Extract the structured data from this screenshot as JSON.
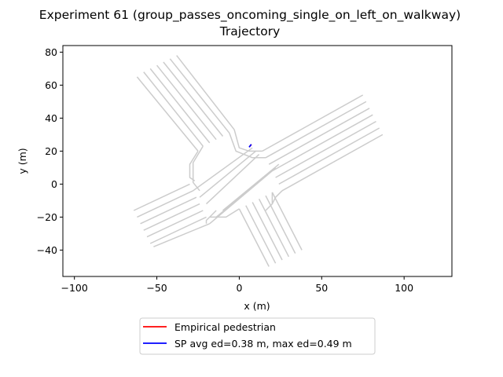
{
  "chart_data": {
    "type": "line",
    "title": "Experiment 61 (group_passes_oncoming_single_on_left_on_walkway)",
    "subtitle": "Trajectory",
    "xlabel": "x (m)",
    "ylabel": "y (m)",
    "xlim": [
      -107,
      129
    ],
    "ylim": [
      -56,
      84
    ],
    "xticks": [
      -100,
      -50,
      0,
      50,
      100
    ],
    "yticks": [
      -40,
      -20,
      0,
      20,
      40,
      60,
      80
    ],
    "grid": false,
    "legend_position": "bottom-center, below plot",
    "background_walkway": {
      "color": "#cccccc",
      "nw_arm": [
        {
          "x": [
            -62,
            -25
          ],
          "y": [
            65,
            20
          ]
        },
        {
          "x": [
            -58,
            -22
          ],
          "y": [
            68,
            23
          ]
        },
        {
          "x": [
            -54,
            -18
          ],
          "y": [
            70,
            25
          ]
        },
        {
          "x": [
            -50,
            -14
          ],
          "y": [
            72,
            27
          ]
        },
        {
          "x": [
            -46,
            -10
          ],
          "y": [
            74,
            29
          ]
        },
        {
          "x": [
            -42,
            -6
          ],
          "y": [
            76,
            31
          ]
        },
        {
          "x": [
            -38,
            -3
          ],
          "y": [
            78,
            33
          ]
        }
      ],
      "se_arm": [
        {
          "x": [
            0,
            18
          ],
          "y": [
            -15,
            -50
          ]
        },
        {
          "x": [
            4,
            22
          ],
          "y": [
            -13,
            -48
          ]
        },
        {
          "x": [
            8,
            26
          ],
          "y": [
            -11,
            -46
          ]
        },
        {
          "x": [
            12,
            30
          ],
          "y": [
            -9,
            -44
          ]
        },
        {
          "x": [
            16,
            34
          ],
          "y": [
            -7,
            -42
          ]
        },
        {
          "x": [
            20,
            38
          ],
          "y": [
            -5,
            -40
          ]
        }
      ],
      "ne_arm": [
        {
          "x": [
            14,
            75
          ],
          "y": [
            20,
            54
          ]
        },
        {
          "x": [
            16,
            77
          ],
          "y": [
            16,
            50
          ]
        },
        {
          "x": [
            18,
            79
          ],
          "y": [
            12,
            46
          ]
        },
        {
          "x": [
            20,
            81
          ],
          "y": [
            8,
            42
          ]
        },
        {
          "x": [
            22,
            83
          ],
          "y": [
            4,
            38
          ]
        },
        {
          "x": [
            24,
            85
          ],
          "y": [
            0,
            34
          ]
        },
        {
          "x": [
            26,
            87
          ],
          "y": [
            -4,
            30
          ]
        }
      ],
      "sw_arm": [
        {
          "x": [
            -64,
            -30
          ],
          "y": [
            -16,
            0
          ]
        },
        {
          "x": [
            -62,
            -28
          ],
          "y": [
            -20,
            -4
          ]
        },
        {
          "x": [
            -60,
            -26
          ],
          "y": [
            -24,
            -8
          ]
        },
        {
          "x": [
            -58,
            -24
          ],
          "y": [
            -28,
            -12
          ]
        },
        {
          "x": [
            -56,
            -22
          ],
          "y": [
            -32,
            -16
          ]
        },
        {
          "x": [
            -54,
            -20
          ],
          "y": [
            -36,
            -20
          ]
        },
        {
          "x": [
            -52,
            -18
          ],
          "y": [
            -38,
            -24
          ]
        }
      ],
      "center_curves": [
        {
          "x": [
            -25,
            -30,
            -30,
            -27
          ],
          "y": [
            20,
            12,
            4,
            2
          ]
        },
        {
          "x": [
            -22,
            -28,
            -28,
            -24
          ],
          "y": [
            23,
            13,
            1,
            -4
          ]
        },
        {
          "x": [
            -3,
            0,
            6,
            14
          ],
          "y": [
            33,
            22,
            20,
            20
          ]
        },
        {
          "x": [
            -6,
            -2,
            8,
            16
          ],
          "y": [
            31,
            20,
            16,
            16
          ]
        },
        {
          "x": [
            26,
            22,
            20
          ],
          "y": [
            -4,
            -8,
            -12
          ]
        },
        {
          "x": [
            20,
            20,
            16
          ],
          "y": [
            -5,
            -12,
            -16
          ]
        },
        {
          "x": [
            0,
            -8,
            -18
          ],
          "y": [
            -15,
            -20,
            -20
          ]
        },
        {
          "x": [
            -14,
            -20,
            -20
          ],
          "y": [
            -16,
            -22,
            -24
          ]
        },
        {
          "x": [
            -18,
            20
          ],
          "y": [
            -24,
            8
          ]
        },
        {
          "x": [
            -14,
            22
          ],
          "y": [
            -20,
            10
          ]
        },
        {
          "x": [
            -10,
            24
          ],
          "y": [
            -16,
            12
          ]
        },
        {
          "x": [
            -28,
            8
          ],
          "y": [
            -4,
            22
          ]
        },
        {
          "x": [
            -24,
            10
          ],
          "y": [
            -8,
            20
          ]
        },
        {
          "x": [
            -20,
            12
          ],
          "y": [
            -12,
            18
          ]
        }
      ]
    },
    "series": [
      {
        "name": "Empirical pedestrian",
        "color": "#ff0000",
        "x": [
          6.2,
          6.8,
          7.4
        ],
        "y": [
          22.6,
          23.4,
          24.0
        ]
      },
      {
        "name": "SP avg ed=0.38 m, max ed=0.49 m",
        "color": "#0000ff",
        "x": [
          6.0,
          6.6,
          7.3
        ],
        "y": [
          22.4,
          23.2,
          24.1
        ]
      }
    ]
  }
}
